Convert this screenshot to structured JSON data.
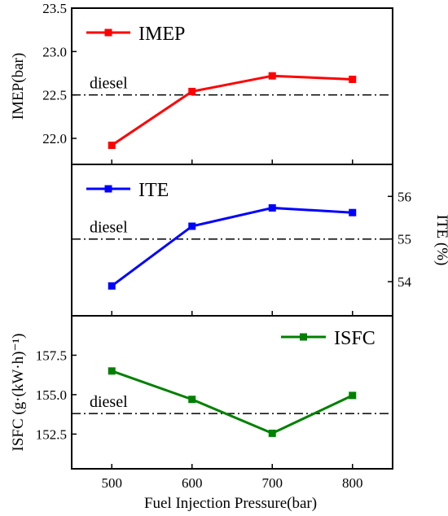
{
  "chart_data": {
    "type": "line",
    "x_values": [
      500,
      600,
      700,
      800
    ],
    "x_tick_labels": [
      "500",
      "600",
      "700",
      "800"
    ],
    "xlabel": "Fuel Injection Pressure(bar)",
    "xlim": [
      450,
      850
    ],
    "panels": [
      {
        "id": "imep",
        "ylabel": "IMEP(bar)",
        "ylabel_side": "left",
        "ylim": [
          21.7,
          23.5
        ],
        "yticks": [
          22.0,
          22.5,
          23.0,
          23.5
        ],
        "ytick_labels": [
          "22.0",
          "22.5",
          "23.0",
          "23.5"
        ],
        "color": "#ff0000",
        "legend_position": "top-left",
        "series": [
          {
            "name": "IMEP",
            "values": [
              21.92,
              22.54,
              22.72,
              22.68
            ]
          }
        ],
        "reference": {
          "label": "diesel",
          "value": 22.5
        }
      },
      {
        "id": "ite",
        "ylabel": "ITE (%)",
        "ylabel_side": "right",
        "ylim": [
          53.2,
          56.75
        ],
        "yticks": [
          54,
          55,
          56
        ],
        "ytick_labels": [
          "54",
          "55",
          "56"
        ],
        "color": "#0000ff",
        "legend_position": "top-left",
        "series": [
          {
            "name": "ITE",
            "values": [
              53.9,
              55.3,
              55.73,
              55.62
            ]
          }
        ],
        "reference": {
          "label": "diesel",
          "value": 55.0
        }
      },
      {
        "id": "isfc",
        "ylabel": "ISFC (g·(kW·h)⁻¹)",
        "ylabel_side": "left",
        "ylim": [
          150.3,
          160.0
        ],
        "yticks": [
          152.5,
          155.0,
          157.5
        ],
        "ytick_labels": [
          "152.5",
          "155.0",
          "157.5"
        ],
        "color": "#008000",
        "legend_position": "top-right",
        "series": [
          {
            "name": "ISFC",
            "values": [
              156.5,
              154.7,
              152.55,
              154.95
            ]
          }
        ],
        "reference": {
          "label": "diesel",
          "value": 153.8
        }
      }
    ]
  }
}
